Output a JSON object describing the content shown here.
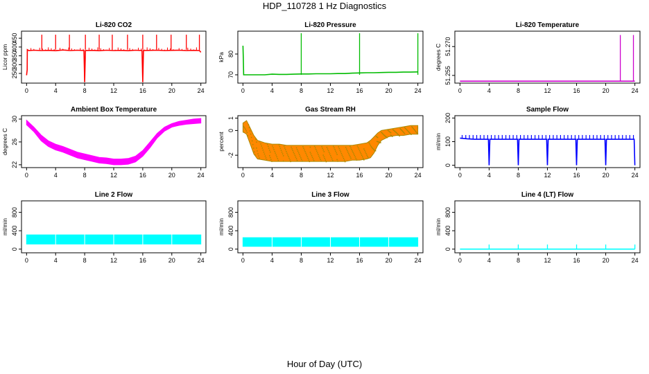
{
  "figure": {
    "title": "HDP_110728  1 Hz Diagnostics",
    "xlabel": "Hour of Day (UTC)"
  },
  "chart_data": [
    {
      "type": "line",
      "title": "Li-820 CO2",
      "ylabel": "Licor ppm",
      "color": "#ff0000",
      "xlim": [
        -0.7,
        24.7
      ],
      "ylim": [
        195,
        490
      ],
      "x_ticks": [
        "0",
        "4",
        "8",
        "12",
        "16",
        "20",
        "24"
      ],
      "y_ticks": [
        "250",
        "300",
        "350",
        "400",
        "450"
      ],
      "series": [
        {
          "x": [
            0,
            0.08,
            0.1,
            0.3,
            1,
            2,
            3,
            4,
            5,
            6,
            7,
            7.9,
            8,
            8.1,
            9,
            10,
            11,
            12,
            13,
            14,
            15,
            15.9,
            16,
            16.1,
            17,
            18,
            19,
            20,
            21,
            22,
            23,
            23.8,
            24
          ],
          "y": [
            240,
            270,
            385,
            380,
            382,
            380,
            381,
            379,
            383,
            380,
            382,
            380,
            200,
            380,
            381,
            379,
            382,
            380,
            381,
            379,
            382,
            380,
            200,
            380,
            381,
            382,
            380,
            381,
            382,
            380,
            381,
            380,
            370
          ]
        }
      ],
      "spikes_x": [
        2.1,
        4,
        5.9,
        8.1,
        10,
        11.8,
        13.9,
        16,
        17.9,
        19.9,
        22,
        23.8
      ],
      "spikes_y": 470
    },
    {
      "type": "line",
      "title": "Li-820 Pressure",
      "ylabel": "kPa",
      "color": "#00bb00",
      "xlim": [
        -0.7,
        24.7
      ],
      "ylim": [
        66,
        91
      ],
      "x_ticks": [
        "0",
        "4",
        "8",
        "12",
        "16",
        "20",
        "24"
      ],
      "y_ticks": [
        "70",
        "80"
      ],
      "series": [
        {
          "x": [
            0,
            0.05,
            0.1,
            1,
            2,
            3,
            4,
            5,
            6,
            7,
            8,
            9,
            10,
            11,
            12,
            13,
            14,
            15,
            16,
            17,
            18,
            19,
            20,
            21,
            22,
            23,
            24
          ],
          "y": [
            84,
            78,
            70,
            70,
            70,
            70,
            70.3,
            70.2,
            70.2,
            70.3,
            70.4,
            70.4,
            70.5,
            70.5,
            70.5,
            70.6,
            70.6,
            70.8,
            70.9,
            71,
            71,
            71.1,
            71.2,
            71.2,
            71.3,
            71.3,
            71.4
          ]
        }
      ],
      "spikes_x": [
        8,
        16,
        24
      ],
      "spikes_y": 90
    },
    {
      "type": "line",
      "title": "Li-820 Temperature",
      "ylabel": "degrees C",
      "color": "#cc00cc",
      "xlim": [
        -0.7,
        24.7
      ],
      "ylim": [
        51.251,
        51.278
      ],
      "x_ticks": [
        "0",
        "4",
        "8",
        "12",
        "16",
        "20",
        "24"
      ],
      "y_ticks": [
        "51.255",
        "51.270"
      ],
      "series": [
        {
          "x": [
            0,
            4,
            8,
            12,
            16,
            20,
            22,
            24
          ],
          "y": [
            51.252,
            51.252,
            51.252,
            51.252,
            51.252,
            51.252,
            51.252,
            51.252
          ]
        }
      ],
      "spikes_x": [
        22,
        23.8
      ],
      "spikes_y": 51.276
    },
    {
      "type": "area",
      "title": "Ambient Box Temperature",
      "ylabel": "degrees C",
      "color": "#ff00ff",
      "xlim": [
        -0.7,
        24.7
      ],
      "ylim": [
        21.5,
        30.6
      ],
      "x_ticks": [
        "0",
        "4",
        "8",
        "12",
        "16",
        "20",
        "24"
      ],
      "y_ticks": [
        "22",
        "26",
        "30"
      ],
      "series": [
        {
          "name": "upper",
          "x": [
            0,
            1,
            2,
            3,
            4,
            5,
            6,
            7,
            8,
            9,
            10,
            11,
            12,
            13,
            14,
            15,
            16,
            17,
            18,
            19,
            20,
            21,
            22,
            23,
            24
          ],
          "y": [
            29.8,
            28.6,
            27.2,
            26.2,
            25.6,
            25.2,
            24.7,
            24.2,
            23.9,
            23.6,
            23.3,
            23.2,
            23.0,
            23.0,
            23.1,
            23.5,
            24.5,
            26.0,
            27.5,
            28.6,
            29.2,
            29.6,
            29.8,
            30.0,
            30.1
          ]
        },
        {
          "name": "lower",
          "x": [
            0,
            1,
            2,
            3,
            4,
            5,
            6,
            7,
            8,
            9,
            10,
            11,
            12,
            13,
            14,
            15,
            16,
            17,
            18,
            19,
            20,
            21,
            22,
            23,
            24
          ],
          "y": [
            29.0,
            27.8,
            26.2,
            25.2,
            24.6,
            24.2,
            23.7,
            23.2,
            22.9,
            22.6,
            22.3,
            22.2,
            22.0,
            22.0,
            22.1,
            22.5,
            23.5,
            25.0,
            26.7,
            27.9,
            28.6,
            28.9,
            29.1,
            29.2,
            29.3
          ]
        }
      ]
    },
    {
      "type": "area",
      "title": "Gas Stream RH",
      "ylabel": "percent",
      "color": "#ff8800",
      "color2": "#aa8800",
      "xlim": [
        -0.7,
        24.7
      ],
      "ylim": [
        -3.0,
        1.2
      ],
      "x_ticks": [
        "0",
        "4",
        "8",
        "12",
        "16",
        "20",
        "24"
      ],
      "y_ticks": [
        "-2",
        "0",
        "1"
      ],
      "series": [
        {
          "name": "upper",
          "x": [
            0,
            0.5,
            1,
            1.5,
            2,
            3,
            4,
            5,
            6,
            7,
            8,
            9,
            10,
            11,
            12,
            13,
            14,
            15,
            16,
            17,
            17.5,
            18,
            18.5,
            19,
            20,
            21,
            22,
            23,
            24
          ],
          "y": [
            0.6,
            0.8,
            0.2,
            -0.4,
            -0.8,
            -1.0,
            -1.1,
            -1.1,
            -1.2,
            -1.2,
            -1.2,
            -1.2,
            -1.2,
            -1.2,
            -1.2,
            -1.2,
            -1.2,
            -1.2,
            -1.1,
            -1.0,
            -0.8,
            -0.5,
            -0.2,
            0.0,
            0.1,
            0.2,
            0.3,
            0.4,
            0.4
          ]
        },
        {
          "name": "lower",
          "x": [
            0,
            0.5,
            1,
            1.5,
            2,
            3,
            4,
            5,
            6,
            7,
            8,
            9,
            10,
            11,
            12,
            13,
            14,
            15,
            16,
            17,
            17.5,
            18,
            18.5,
            19,
            20,
            21,
            22,
            23,
            24
          ],
          "y": [
            -0.1,
            -0.3,
            -1.1,
            -1.9,
            -2.3,
            -2.4,
            -2.5,
            -2.5,
            -2.5,
            -2.5,
            -2.5,
            -2.5,
            -2.5,
            -2.5,
            -2.5,
            -2.5,
            -2.5,
            -2.4,
            -2.4,
            -2.3,
            -2.2,
            -1.8,
            -1.2,
            -0.8,
            -0.5,
            -0.4,
            -0.4,
            -0.3,
            -0.3
          ]
        }
      ]
    },
    {
      "type": "line",
      "title": "Sample Flow",
      "ylabel": "ml/min",
      "color": "#0000ff",
      "xlim": [
        -0.7,
        24.7
      ],
      "ylim": [
        -10,
        210
      ],
      "x_ticks": [
        "0",
        "4",
        "8",
        "12",
        "16",
        "20",
        "24"
      ],
      "y_ticks": [
        "0",
        "100",
        "200"
      ],
      "series": [
        {
          "x": [
            0,
            1,
            2,
            3,
            3.9,
            4,
            4.1,
            5,
            6,
            7,
            7.9,
            8,
            8.1,
            9,
            10,
            11,
            11.9,
            12,
            12.1,
            13,
            14,
            15,
            15.9,
            16,
            16.1,
            17,
            18,
            19,
            19.9,
            20,
            20.1,
            21,
            22,
            23,
            23.9,
            24
          ],
          "y": [
            115,
            112,
            110,
            110,
            110,
            0,
            110,
            110,
            110,
            110,
            110,
            0,
            110,
            110,
            110,
            110,
            110,
            0,
            110,
            110,
            110,
            110,
            110,
            0,
            110,
            110,
            110,
            110,
            110,
            0,
            110,
            110,
            110,
            110,
            110,
            0
          ]
        }
      ],
      "spikes_y": 128
    },
    {
      "type": "area",
      "title": "Line 2 Flow",
      "ylabel": "ml/min",
      "color": "#00ffff",
      "xlim": [
        -0.7,
        24.7
      ],
      "ylim": [
        -80,
        1050
      ],
      "x_ticks": [
        "0",
        "4",
        "8",
        "12",
        "16",
        "20",
        "24"
      ],
      "y_ticks": [
        "0",
        "400",
        "800"
      ],
      "series": [
        {
          "name": "upper",
          "x": [
            0,
            24
          ],
          "y": [
            310,
            310
          ]
        },
        {
          "name": "lower",
          "x": [
            0,
            24
          ],
          "y": [
            110,
            110
          ]
        }
      ],
      "gaps_x": [
        4,
        8,
        12,
        16,
        20
      ]
    },
    {
      "type": "area",
      "title": "Line 3 Flow",
      "ylabel": "ml/min",
      "color": "#00ffff",
      "xlim": [
        -0.7,
        24.7
      ],
      "ylim": [
        -80,
        1050
      ],
      "x_ticks": [
        "0",
        "4",
        "8",
        "12",
        "16",
        "20",
        "24"
      ],
      "y_ticks": [
        "0",
        "400",
        "800"
      ],
      "series": [
        {
          "name": "upper",
          "x": [
            0,
            24
          ],
          "y": [
            250,
            250
          ]
        },
        {
          "name": "lower",
          "x": [
            0,
            24
          ],
          "y": [
            60,
            60
          ]
        }
      ],
      "gaps_x": [
        4,
        8,
        12,
        16,
        20
      ]
    },
    {
      "type": "line",
      "title": "Line 4 (LT) Flow",
      "ylabel": "ml/min",
      "color": "#00ffff",
      "xlim": [
        -0.7,
        24.7
      ],
      "ylim": [
        -80,
        1050
      ],
      "x_ticks": [
        "0",
        "4",
        "8",
        "12",
        "16",
        "20",
        "24"
      ],
      "y_ticks": [
        "0",
        "400",
        "800"
      ],
      "series": [
        {
          "x": [
            0,
            24
          ],
          "y": [
            0,
            0
          ]
        }
      ],
      "spikes_x": [
        4,
        8,
        12,
        16,
        20,
        24
      ],
      "spikes_y": 100
    }
  ]
}
